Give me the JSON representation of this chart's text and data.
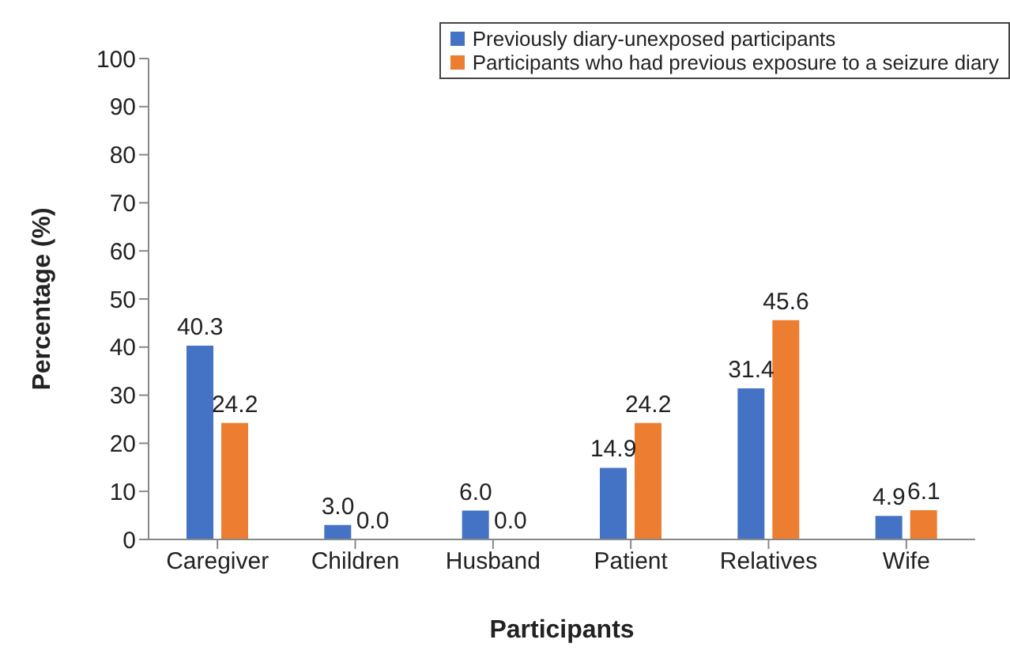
{
  "chart_data": {
    "type": "bar",
    "xlabel": "Participants",
    "ylabel": "Percentage (%)",
    "categories": [
      "Caregiver",
      "Children",
      "Husband",
      "Patient",
      "Relatives",
      "Wife"
    ],
    "series": [
      {
        "name": "Previously diary-unexposed participants",
        "color": "#4472c4",
        "values": [
          40.3,
          3.0,
          6.0,
          14.9,
          31.4,
          4.9
        ],
        "value_labels": [
          "40.3",
          "3.0",
          "6.0",
          "14.9",
          "31.4",
          "4.9"
        ]
      },
      {
        "name": "Participants who had previous exposure to a seizure diary",
        "color": "#ed7d31",
        "values": [
          24.2,
          0.0,
          0.0,
          24.2,
          45.6,
          6.1
        ],
        "value_labels": [
          "24.2",
          "0.0",
          "0.0",
          "24.2",
          "45.6",
          "6.1"
        ]
      }
    ],
    "ylim": [
      0,
      100
    ],
    "yticks": [
      0,
      10,
      20,
      30,
      40,
      50,
      60,
      70,
      80,
      90,
      100
    ],
    "grid": false,
    "legend": "top right"
  }
}
